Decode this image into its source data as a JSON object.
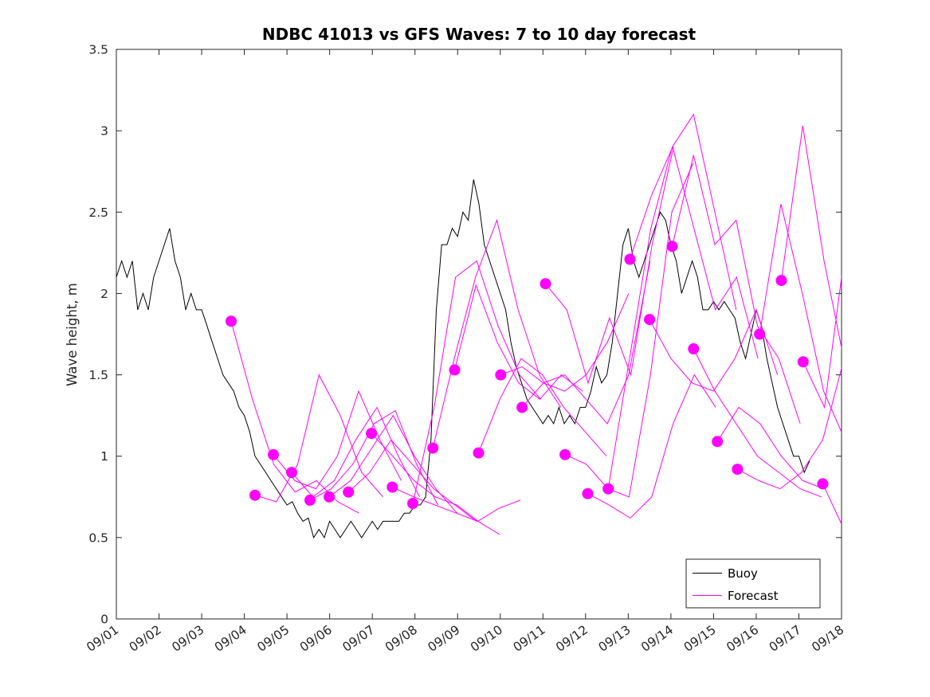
{
  "chart_data": {
    "type": "line",
    "title": "NDBC 41013 vs GFS Waves: 7 to 10 day forecast",
    "xlabel": "",
    "ylabel": "Wave height, m",
    "ylim": [
      0,
      3.5
    ],
    "xlim_days": [
      0,
      17
    ],
    "grid": false,
    "yticks": [
      0,
      0.5,
      1,
      1.5,
      2,
      2.5,
      3,
      3.5
    ],
    "ytick_labels": [
      "0",
      "0.5",
      "1",
      "1.5",
      "2",
      "2.5",
      "3",
      "3.5"
    ],
    "xtick_labels": [
      "09/01",
      "09/02",
      "09/03",
      "09/04",
      "09/05",
      "09/06",
      "09/07",
      "09/08",
      "09/09",
      "09/10",
      "09/11",
      "09/12",
      "09/13",
      "09/14",
      "09/15",
      "09/16",
      "09/17",
      "09/18"
    ],
    "colors": {
      "buoy": "#000000",
      "forecast": "#ff00ff"
    },
    "legend": {
      "position": "bottom-right",
      "entries": [
        {
          "label": "Buoy",
          "color": "#000000"
        },
        {
          "label": "Forecast",
          "color": "#ff00ff"
        }
      ]
    },
    "buoy_series": {
      "name": "Buoy",
      "t0_day": 0,
      "dt_days": 0.125,
      "values": [
        2.1,
        2.2,
        2.1,
        2.2,
        1.9,
        2.0,
        1.9,
        2.1,
        2.2,
        2.3,
        2.4,
        2.2,
        2.1,
        1.9,
        2.0,
        1.9,
        1.9,
        1.8,
        1.7,
        1.6,
        1.5,
        1.45,
        1.4,
        1.3,
        1.25,
        1.15,
        1.0,
        0.95,
        0.9,
        0.85,
        0.8,
        0.75,
        0.7,
        0.72,
        0.65,
        0.6,
        0.62,
        0.5,
        0.55,
        0.5,
        0.6,
        0.55,
        0.5,
        0.55,
        0.6,
        0.55,
        0.5,
        0.55,
        0.6,
        0.55,
        0.6,
        0.6,
        0.6,
        0.6,
        0.65,
        0.65,
        0.7,
        0.7,
        0.75,
        1.1,
        1.9,
        2.3,
        2.3,
        2.4,
        2.35,
        2.5,
        2.45,
        2.7,
        2.55,
        2.3,
        2.2,
        2.1,
        2.0,
        1.9,
        1.7,
        1.55,
        1.45,
        1.35,
        1.3,
        1.25,
        1.2,
        1.25,
        1.2,
        1.3,
        1.2,
        1.25,
        1.2,
        1.3,
        1.3,
        1.4,
        1.55,
        1.45,
        1.5,
        1.7,
        2.0,
        2.3,
        2.4,
        2.2,
        2.1,
        2.2,
        2.3,
        2.4,
        2.5,
        2.45,
        2.3,
        2.2,
        2.0,
        2.1,
        2.2,
        2.1,
        1.9,
        1.9,
        1.95,
        1.9,
        1.95,
        1.9,
        1.85,
        1.7,
        1.6,
        1.75,
        1.9,
        1.8,
        1.6,
        1.45,
        1.3,
        1.2,
        1.1,
        1.0,
        1.0,
        0.9,
        0.97
      ]
    },
    "forecast_series": [
      {
        "start_day": 2.69,
        "step_days": 0.5,
        "values": [
          1.83,
          1.35,
          0.95,
          0.78,
          0.85,
          0.72,
          0.65
        ]
      },
      {
        "start_day": 3.25,
        "step_days": 0.5,
        "values": [
          0.76,
          0.72,
          0.95,
          1.5,
          1.25,
          0.9,
          0.75
        ]
      },
      {
        "start_day": 3.68,
        "step_days": 0.5,
        "values": [
          1.01,
          0.85,
          0.8,
          1.0,
          1.4,
          1.1,
          0.85
        ]
      },
      {
        "start_day": 4.11,
        "step_days": 0.5,
        "values": [
          0.9,
          0.75,
          0.85,
          1.1,
          1.3,
          1.0,
          0.75
        ]
      },
      {
        "start_day": 4.54,
        "step_days": 0.5,
        "values": [
          0.73,
          0.8,
          0.95,
          1.2,
          1.28,
          0.95,
          0.7
        ]
      },
      {
        "start_day": 4.99,
        "step_days": 0.5,
        "values": [
          0.75,
          0.85,
          1.05,
          1.25,
          1.0,
          0.8,
          0.65
        ]
      },
      {
        "start_day": 5.44,
        "step_days": 0.5,
        "values": [
          0.78,
          0.9,
          1.1,
          0.95,
          0.8,
          0.7,
          0.6
        ]
      },
      {
        "start_day": 5.98,
        "step_days": 0.5,
        "values": [
          1.14,
          1.0,
          0.85,
          0.75,
          0.7,
          0.6,
          0.52
        ]
      },
      {
        "start_day": 6.47,
        "step_days": 0.5,
        "values": [
          0.81,
          0.75,
          0.7,
          0.65,
          0.6,
          0.68,
          0.73
        ]
      },
      {
        "start_day": 6.95,
        "step_days": 0.5,
        "values": [
          0.71,
          1.3,
          2.1,
          2.2,
          1.8,
          1.5,
          1.35
        ]
      },
      {
        "start_day": 7.42,
        "step_days": 0.5,
        "values": [
          1.05,
          1.6,
          2.1,
          2.45,
          1.9,
          1.5,
          1.3
        ]
      },
      {
        "start_day": 7.93,
        "step_days": 0.5,
        "values": [
          1.53,
          2.05,
          1.7,
          1.45,
          1.35,
          1.5,
          1.4
        ]
      },
      {
        "start_day": 8.49,
        "step_days": 0.5,
        "values": [
          1.02,
          1.35,
          1.6,
          1.5,
          1.3,
          1.15,
          1.0
        ]
      },
      {
        "start_day": 9.01,
        "step_days": 0.5,
        "values": [
          1.5,
          1.55,
          1.45,
          1.4,
          1.5,
          1.7,
          2.0
        ]
      },
      {
        "start_day": 9.51,
        "step_days": 0.5,
        "values": [
          1.3,
          1.45,
          1.5,
          1.35,
          1.2,
          1.5,
          2.2
        ]
      },
      {
        "start_day": 10.06,
        "step_days": 0.5,
        "values": [
          2.06,
          1.9,
          1.45,
          1.85,
          1.5,
          2.3,
          2.9
        ]
      },
      {
        "start_day": 10.52,
        "step_days": 0.5,
        "values": [
          1.01,
          0.95,
          0.8,
          0.75,
          1.5,
          2.5,
          2.8
        ]
      },
      {
        "start_day": 11.05,
        "step_days": 0.5,
        "values": [
          0.77,
          0.7,
          0.62,
          0.75,
          1.2,
          1.5,
          1.3
        ]
      },
      {
        "start_day": 11.53,
        "step_days": 0.5,
        "values": [
          0.8,
          1.6,
          2.4,
          2.9,
          3.1,
          2.5,
          1.9
        ]
      },
      {
        "start_day": 12.04,
        "step_days": 0.5,
        "values": [
          2.21,
          2.6,
          2.9,
          2.4,
          1.9,
          2.1,
          1.6
        ]
      },
      {
        "start_day": 12.5,
        "step_days": 0.5,
        "values": [
          1.84,
          1.6,
          1.45,
          1.4,
          1.6,
          1.9,
          1.5
        ]
      },
      {
        "start_day": 13.03,
        "step_days": 0.5,
        "values": [
          2.29,
          2.85,
          2.3,
          2.45,
          1.8,
          1.6,
          1.2
        ]
      },
      {
        "start_day": 13.53,
        "step_days": 0.5,
        "values": [
          1.66,
          1.4,
          1.2,
          1.0,
          0.9,
          0.8,
          0.75
        ]
      },
      {
        "start_day": 14.09,
        "step_days": 0.5,
        "values": [
          1.09,
          1.3,
          1.2,
          1.0,
          0.85,
          0.8
        ]
      },
      {
        "start_day": 14.56,
        "step_days": 0.5,
        "values": [
          0.92,
          0.85,
          0.8,
          0.9,
          1.1,
          1.6
        ]
      },
      {
        "start_day": 15.08,
        "step_days": 0.5,
        "values": [
          1.75,
          2.55,
          2.0,
          1.4,
          1.1
        ]
      },
      {
        "start_day": 15.59,
        "step_days": 0.5,
        "values": [
          2.08,
          3.03,
          2.2,
          1.55
        ]
      },
      {
        "start_day": 16.1,
        "step_days": 0.5,
        "values": [
          1.58,
          1.3,
          2.3
        ]
      },
      {
        "start_day": 16.56,
        "step_days": 0.5,
        "values": [
          0.83,
          0.55
        ]
      }
    ]
  }
}
